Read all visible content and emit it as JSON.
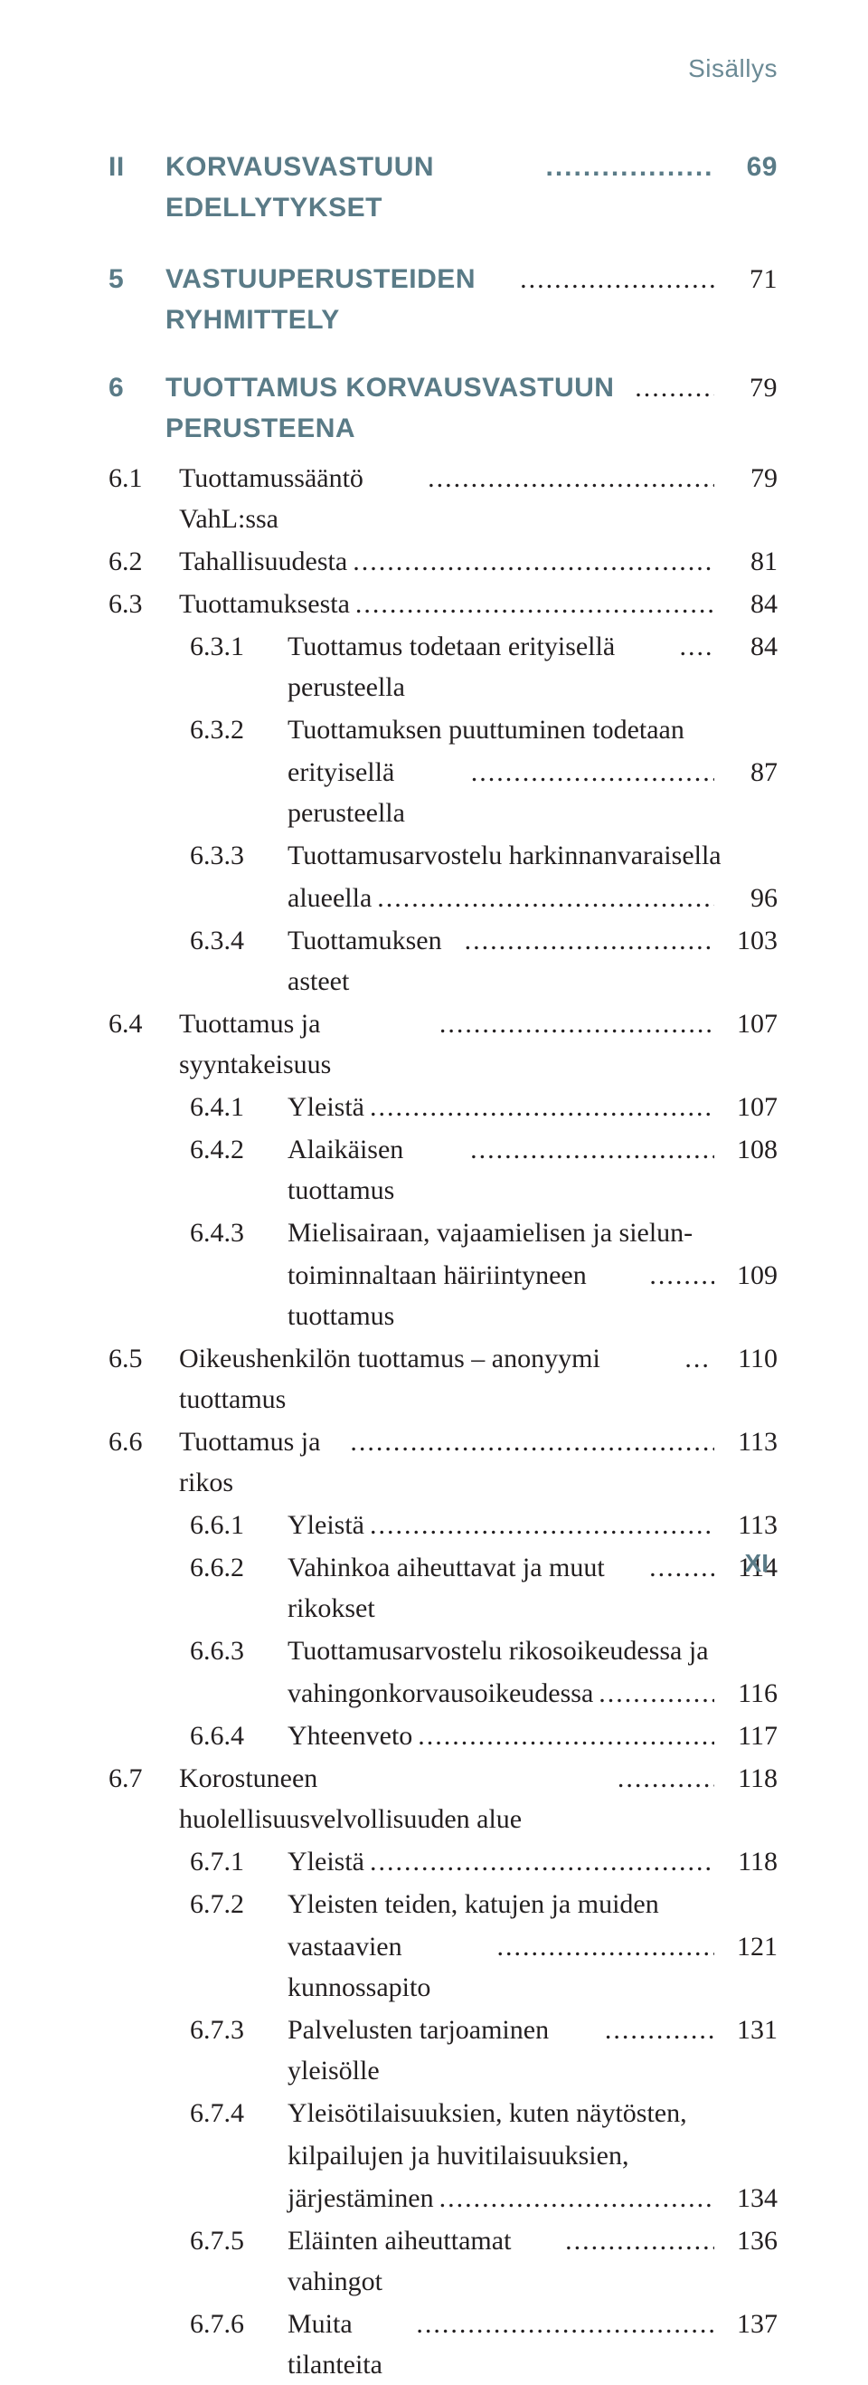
{
  "header": "Sisällys",
  "footer": "XI",
  "part": {
    "num": "II",
    "title": "KORVAUSVASTUUN EDELLYTYKSET",
    "page": "69"
  },
  "chapters": [
    {
      "num": "5",
      "title": "VASTUUPERUSTEIDEN RYHMITTELY",
      "page": "71",
      "sections": []
    },
    {
      "num": "6",
      "title": "TUOTTAMUS KORVAUSVASTUUN PERUSTEENA",
      "page": "79",
      "sections": [
        {
          "num": "6.1",
          "title": "Tuottamussääntö VahL:ssa",
          "page": "79"
        },
        {
          "num": "6.2",
          "title": "Tahallisuudesta",
          "page": "81"
        },
        {
          "num": "6.3",
          "title": "Tuottamuksesta",
          "page": "84",
          "subs": [
            {
              "num": "6.3.1",
              "title": "Tuottamus todetaan erityisellä perusteella",
              "page": "84"
            },
            {
              "num": "6.3.2",
              "title": "Tuottamuksen puuttuminen todetaan erityisellä perusteella",
              "page": "87"
            },
            {
              "num": "6.3.3",
              "title": "Tuottamusarvostelu harkinnanvaraisella alueella",
              "page": "96"
            },
            {
              "num": "6.3.4",
              "title": "Tuottamuksen asteet",
              "page": "103"
            }
          ]
        },
        {
          "num": "6.4",
          "title": "Tuottamus ja syyntakeisuus",
          "page": "107",
          "subs": [
            {
              "num": "6.4.1",
              "title": "Yleistä",
              "page": "107"
            },
            {
              "num": "6.4.2",
              "title": "Alaikäisen tuottamus",
              "page": "108"
            },
            {
              "num": "6.4.3",
              "title": "Mielisairaan, vajaamielisen ja sieluntoiminnaltaan häiriintyneen tuottamus",
              "page": "109"
            }
          ]
        },
        {
          "num": "6.5",
          "title": "Oikeushenkilön tuottamus – anonyymi tuottamus",
          "page": "110"
        },
        {
          "num": "6.6",
          "title": "Tuottamus ja rikos",
          "page": "113",
          "subs": [
            {
              "num": "6.6.1",
              "title": "Yleistä",
              "page": "113"
            },
            {
              "num": "6.6.2",
              "title": "Vahinkoa aiheuttavat ja muut rikokset",
              "page": "114"
            },
            {
              "num": "6.6.3",
              "title": "Tuottamusarvostelu rikosoikeudessa ja vahingonkorvausoikeudessa",
              "page": "116"
            },
            {
              "num": "6.6.4",
              "title": "Yhteenveto",
              "page": "117"
            }
          ]
        },
        {
          "num": "6.7",
          "title": "Korostuneen huolellisuusvelvollisuuden alue",
          "page": "118",
          "subs": [
            {
              "num": "6.7.1",
              "title": "Yleistä",
              "page": "118"
            },
            {
              "num": "6.7.2",
              "title": "Yleisten teiden, katujen ja muiden vastaavien kunnossapito",
              "page": "121"
            },
            {
              "num": "6.7.3",
              "title": "Palvelusten tarjoaminen yleisölle",
              "page": "131"
            },
            {
              "num": "6.7.4",
              "title": "Yleisötilaisuuksien, kuten näytösten, kilpailujen ja huvitilaisuuksien, järjestäminen",
              "page": "134"
            },
            {
              "num": "6.7.5",
              "title": "Eläinten aiheuttamat vahingot",
              "page": "136"
            },
            {
              "num": "6.7.6",
              "title": "Muita tilanteita",
              "page": "137"
            }
          ]
        }
      ]
    }
  ]
}
